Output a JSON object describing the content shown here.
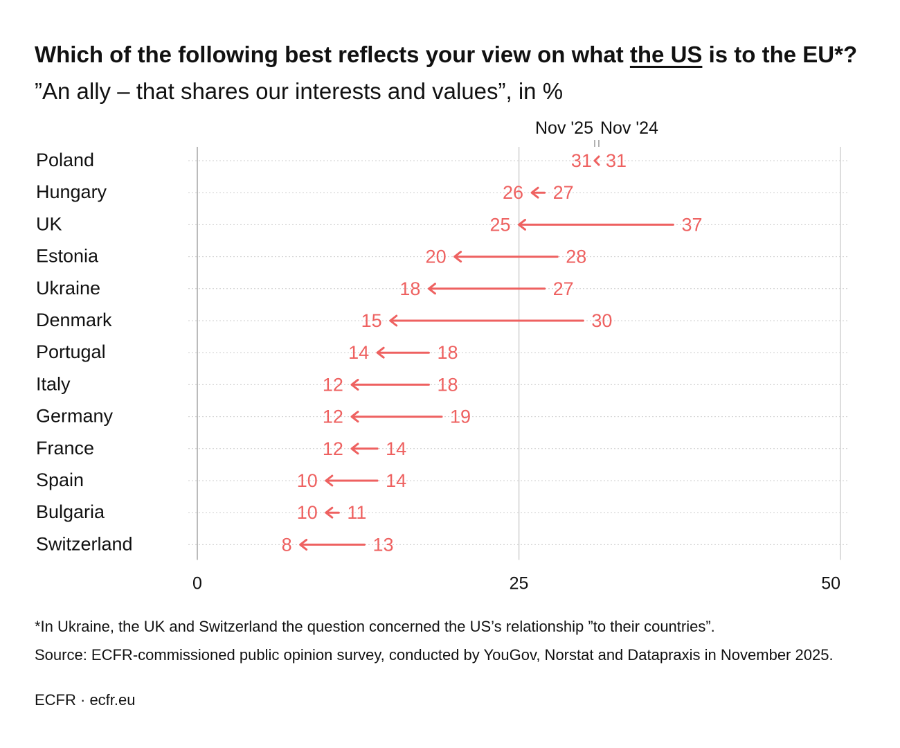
{
  "title": {
    "part1": "Which of the following best reflects your view on what ",
    "underlined": "the US",
    "part2": " is to the EU*?",
    "subtitle": " ”An ally – that shares our interests and values”, in %"
  },
  "footnote": "*In Ukraine, the UK and Switzerland the question concerned the US’s relationship ”to their countries”.",
  "source": "Source: ECFR-commissioned public opinion survey, conducted by YouGov, Norstat and Datapraxis in November 2025.",
  "credit": "ECFR · ecfr.eu",
  "colors": {
    "accent": "#ee6160",
    "axis": "#bbbbbb",
    "grid": "#dddddd",
    "text": "#111111"
  },
  "chart_data": {
    "type": "arrow",
    "series": [
      {
        "name": "Nov '24",
        "role": "from"
      },
      {
        "name": "Nov '25",
        "role": "to"
      }
    ],
    "xlim": [
      0,
      50
    ],
    "xticks": [
      0,
      25,
      50
    ],
    "rows": [
      {
        "label": "Poland",
        "from": 31,
        "to": 31
      },
      {
        "label": "Hungary",
        "from": 27,
        "to": 26
      },
      {
        "label": "UK",
        "from": 37,
        "to": 25
      },
      {
        "label": "Estonia",
        "from": 28,
        "to": 20
      },
      {
        "label": "Ukraine",
        "from": 27,
        "to": 18
      },
      {
        "label": "Denmark",
        "from": 30,
        "to": 15
      },
      {
        "label": "Portugal",
        "from": 18,
        "to": 14
      },
      {
        "label": "Italy",
        "from": 18,
        "to": 12
      },
      {
        "label": "Germany",
        "from": 19,
        "to": 12
      },
      {
        "label": "France",
        "from": 14,
        "to": 12
      },
      {
        "label": "Spain",
        "from": 14,
        "to": 10
      },
      {
        "label": "Bulgaria",
        "from": 11,
        "to": 10
      },
      {
        "label": "Switzerland",
        "from": 13,
        "to": 8
      }
    ]
  }
}
